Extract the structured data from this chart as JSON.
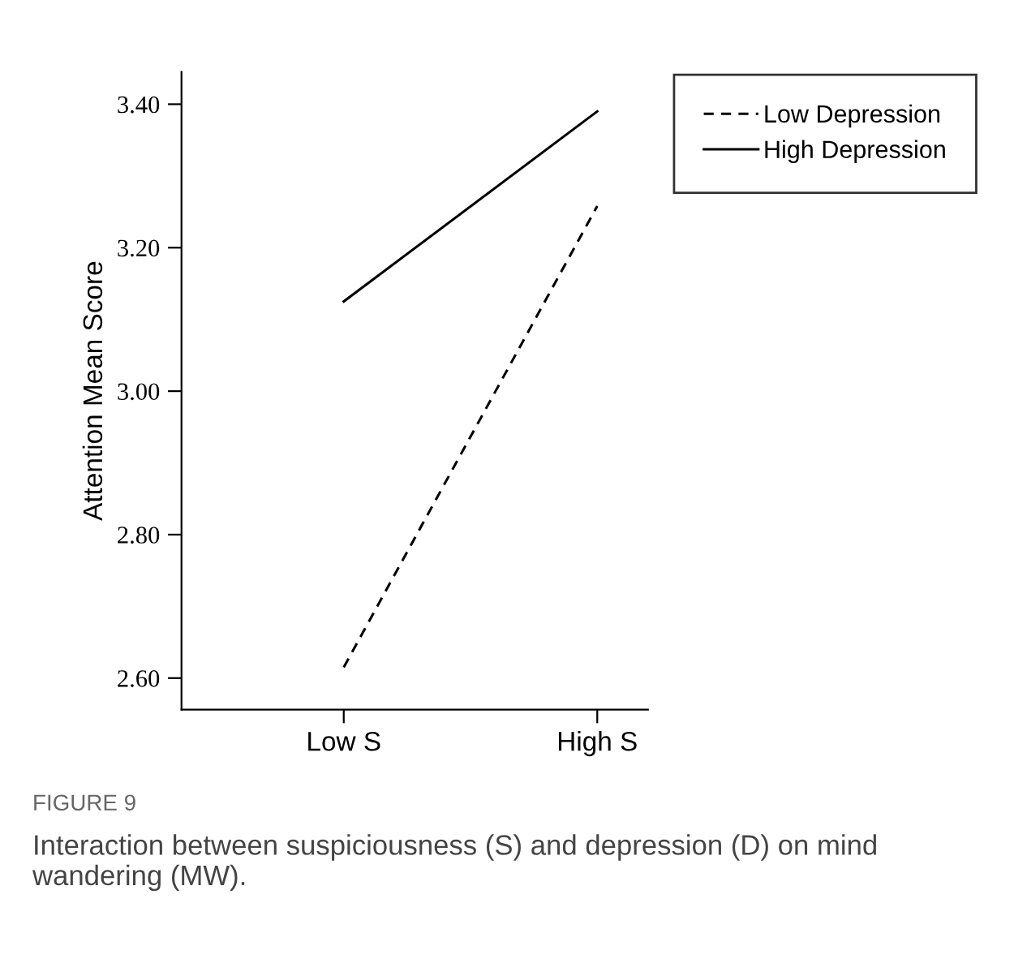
{
  "chart_data": {
    "type": "line",
    "ylabel": "Attention Mean Score",
    "categories": [
      "Low S",
      "High S"
    ],
    "series": [
      {
        "name": "Low Depression",
        "color": "#000000",
        "line_style": "dashed",
        "values": [
          2.615,
          3.258
        ]
      },
      {
        "name": "High Depression",
        "color": "#000000",
        "line_style": "solid",
        "values": [
          3.125,
          3.39
        ]
      }
    ],
    "ylim": [
      2.556,
      3.445
    ],
    "yticks": [
      {
        "value": 2.6,
        "label": "2.60"
      },
      {
        "value": 2.8,
        "label": "2.80"
      },
      {
        "value": 3.0,
        "label": "3.00"
      },
      {
        "value": 3.2,
        "label": "3.20"
      },
      {
        "value": 3.4,
        "label": "3.40"
      }
    ],
    "grid": false,
    "legend": "top right",
    "marker": "none",
    "annotations": [
      "FIGURE 9",
      "Interaction between suspiciousness (S) and depression (D) on mind wandering (MW)."
    ]
  }
}
